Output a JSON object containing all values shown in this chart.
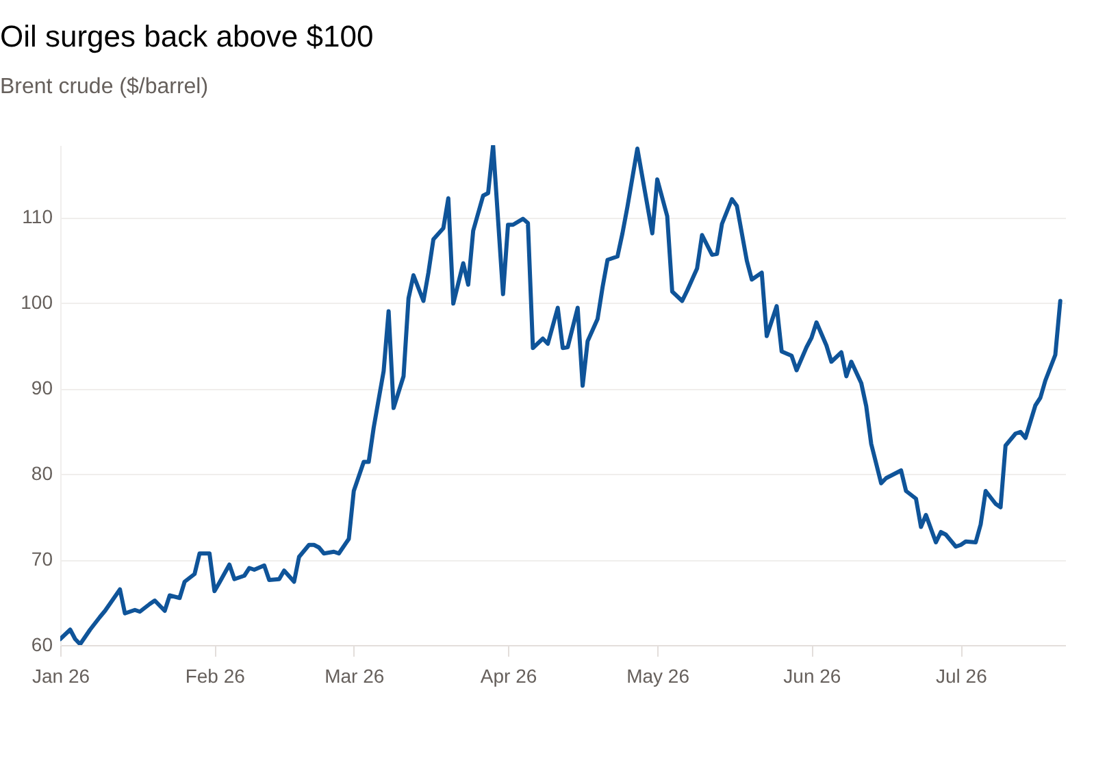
{
  "chart_data": {
    "type": "line",
    "title": "Oil surges back above $100",
    "subtitle": "Brent crude ($/barrel)",
    "x": [
      "2026-01-01",
      "2026-01-03",
      "2026-01-04",
      "2026-01-05",
      "2026-01-07",
      "2026-01-09",
      "2026-01-10",
      "2026-01-13",
      "2026-01-14",
      "2026-01-16",
      "2026-01-17",
      "2026-01-19",
      "2026-01-20",
      "2026-01-22",
      "2026-01-23",
      "2026-01-25",
      "2026-01-26",
      "2026-01-28",
      "2026-01-29",
      "2026-01-31",
      "2026-02-01",
      "2026-02-02",
      "2026-02-04",
      "2026-02-05",
      "2026-02-07",
      "2026-02-08",
      "2026-02-09",
      "2026-02-11",
      "2026-02-12",
      "2026-02-14",
      "2026-02-15",
      "2026-02-17",
      "2026-02-18",
      "2026-02-20",
      "2026-02-21",
      "2026-02-22",
      "2026-02-23",
      "2026-02-25",
      "2026-02-26",
      "2026-02-28",
      "2026-03-01",
      "2026-03-03",
      "2026-03-04",
      "2026-03-05",
      "2026-03-07",
      "2026-03-08",
      "2026-03-09",
      "2026-03-11",
      "2026-03-12",
      "2026-03-13",
      "2026-03-15",
      "2026-03-16",
      "2026-03-17",
      "2026-03-19",
      "2026-03-20",
      "2026-03-21",
      "2026-03-23",
      "2026-03-24",
      "2026-03-25",
      "2026-03-27",
      "2026-03-28",
      "2026-03-29",
      "2026-03-31",
      "2026-04-01",
      "2026-04-02",
      "2026-04-04",
      "2026-04-05",
      "2026-04-06",
      "2026-04-08",
      "2026-04-09",
      "2026-04-11",
      "2026-04-12",
      "2026-04-13",
      "2026-04-15",
      "2026-04-16",
      "2026-04-17",
      "2026-04-19",
      "2026-04-20",
      "2026-04-21",
      "2026-04-23",
      "2026-04-24",
      "2026-04-25",
      "2026-04-27",
      "2026-04-28",
      "2026-04-30",
      "2026-05-01",
      "2026-05-03",
      "2026-05-04",
      "2026-05-06",
      "2026-05-07",
      "2026-05-09",
      "2026-05-10",
      "2026-05-12",
      "2026-05-13",
      "2026-05-14",
      "2026-05-16",
      "2026-05-17",
      "2026-05-19",
      "2026-05-20",
      "2026-05-22",
      "2026-05-23",
      "2026-05-25",
      "2026-05-26",
      "2026-05-28",
      "2026-05-29",
      "2026-05-31",
      "2026-06-01",
      "2026-06-02",
      "2026-06-04",
      "2026-06-05",
      "2026-06-07",
      "2026-06-08",
      "2026-06-09",
      "2026-06-11",
      "2026-06-12",
      "2026-06-13",
      "2026-06-15",
      "2026-06-16",
      "2026-06-17",
      "2026-06-19",
      "2026-06-20",
      "2026-06-22",
      "2026-06-23",
      "2026-06-24",
      "2026-06-26",
      "2026-06-27",
      "2026-06-28",
      "2026-06-30",
      "2026-07-01",
      "2026-07-02",
      "2026-07-04",
      "2026-07-05",
      "2026-07-06",
      "2026-07-08",
      "2026-07-09",
      "2026-07-10",
      "2026-07-12",
      "2026-07-13",
      "2026-07-14",
      "2026-07-16",
      "2026-07-17",
      "2026-07-18",
      "2026-07-20",
      "2026-07-21"
    ],
    "series": [
      {
        "color": "#0f5499",
        "values": [
          60.7,
          61.8,
          60.7,
          60.1,
          61.8,
          63.3,
          64.0,
          66.5,
          63.7,
          64.1,
          63.9,
          64.8,
          65.2,
          64.0,
          65.8,
          65.5,
          67.4,
          68.3,
          70.7,
          70.7,
          66.3,
          67.3,
          69.4,
          67.7,
          68.1,
          69.0,
          68.8,
          69.3,
          67.6,
          67.7,
          68.7,
          67.4,
          70.3,
          71.7,
          71.7,
          71.4,
          70.7,
          70.9,
          70.7,
          72.4,
          78.0,
          81.4,
          81.4,
          85.4,
          92.0,
          99.0,
          87.7,
          91.4,
          100.5,
          103.2,
          100.2,
          103.5,
          107.4,
          108.7,
          112.2,
          99.9,
          104.6,
          102.1,
          108.4,
          112.5,
          112.8,
          118.4,
          101.0,
          109.1,
          109.1,
          109.8,
          109.3,
          94.7,
          95.8,
          95.2,
          99.4,
          94.7,
          94.8,
          99.4,
          90.3,
          95.5,
          98.1,
          101.8,
          105.0,
          105.4,
          108.1,
          111.2,
          118.0,
          114.7,
          108.1,
          114.4,
          110.1,
          101.3,
          100.2,
          101.4,
          104.0,
          107.9,
          105.6,
          105.7,
          109.2,
          112.1,
          111.3,
          104.9,
          102.7,
          103.5,
          96.1,
          99.6,
          94.3,
          93.8,
          92.1,
          94.8,
          95.9,
          97.7,
          95.0,
          93.1,
          94.2,
          91.4,
          93.1,
          90.6,
          87.9,
          83.5,
          78.9,
          79.5,
          79.8,
          80.4,
          78.0,
          77.1,
          73.8,
          75.2,
          72.0,
          73.2,
          72.9,
          71.5,
          71.7,
          72.1,
          72.0,
          74.1,
          78.0,
          76.5,
          76.1,
          83.3,
          84.7,
          84.9,
          84.2,
          88.0,
          88.9,
          90.9,
          93.9,
          100.2
        ]
      }
    ],
    "xlim": [
      "2026-01-01",
      "2026-07-22"
    ],
    "xticks": [
      {
        "value": "2026-01-01",
        "label": "Jan 26"
      },
      {
        "value": "2026-02-01",
        "label": "Feb 26"
      },
      {
        "value": "2026-03-01",
        "label": "Mar 26"
      },
      {
        "value": "2026-04-01",
        "label": "Apr 26"
      },
      {
        "value": "2026-05-01",
        "label": "May 26"
      },
      {
        "value": "2026-06-01",
        "label": "Jun 26"
      },
      {
        "value": "2026-07-01",
        "label": "Jul 26"
      }
    ],
    "ylim": [
      60,
      118.4
    ],
    "yticks": [
      60,
      70,
      80,
      90,
      100,
      110
    ],
    "grid": "y",
    "line_style": "solid",
    "marker": "none"
  }
}
